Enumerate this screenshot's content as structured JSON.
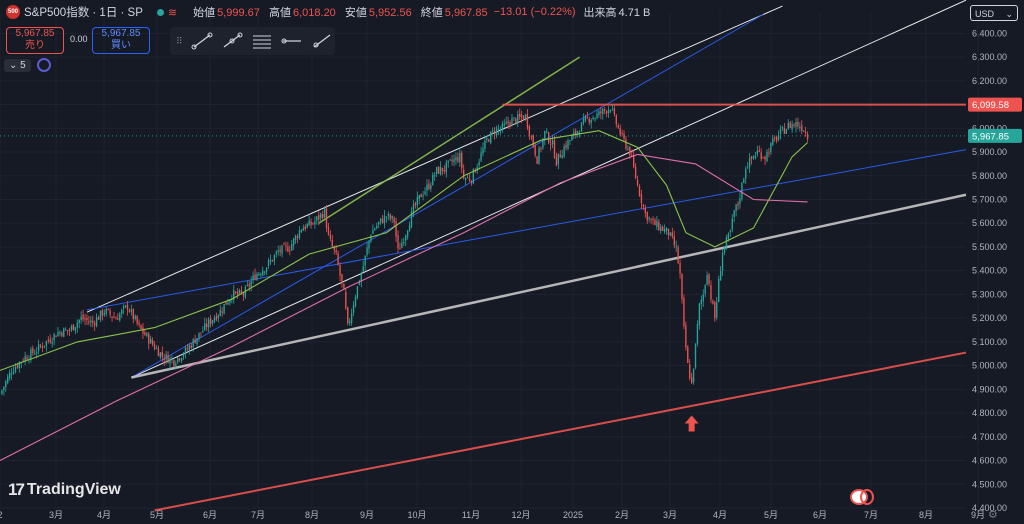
{
  "header": {
    "symbol_logo": "500",
    "title": "S&P500指数 · 1日 · SP",
    "open_label": "始値",
    "open": "5,999.67",
    "high_label": "高値",
    "high": "6,018.20",
    "low_label": "安値",
    "low": "5,952.56",
    "close_label": "終値",
    "close": "5,967.85",
    "change": "−13.01 (−0.22%)",
    "volume_label": "出来高",
    "volume": "4.71 B"
  },
  "trade": {
    "sell_price": "5,967.85",
    "sell_label": "売り",
    "buy_price": "5,967.85",
    "buy_label": "買い",
    "spread": "0.00"
  },
  "indicator_count": "5",
  "currency": "USD",
  "brand": "TradingView",
  "colors": {
    "background": "#161a25",
    "up": "#26a69a",
    "down": "#ef5350",
    "resistance": "#ef5350",
    "last": "#26a69a"
  },
  "chart_data": {
    "type": "candlestick",
    "x_ticks": [
      "2",
      "3月",
      "4月",
      "5月",
      "6月",
      "7月",
      "8月",
      "9月",
      "10月",
      "11月",
      "12月",
      "2025",
      "2月",
      "3月",
      "4月",
      "5月",
      "6月",
      "7月",
      "8月",
      "9月"
    ],
    "y_ticks": [
      "6,400.00",
      "6,300.00",
      "6,200.00",
      "6,100.00",
      "6,000.00",
      "5,900.00",
      "5,800.00",
      "5,700.00",
      "5,600.00",
      "5,500.00",
      "5,400.00",
      "5,300.00",
      "5,200.00",
      "5,100.00",
      "5,000.00",
      "4,900.00",
      "4,800.00",
      "4,700.00",
      "4,600.00",
      "4,500.00",
      "4,400.00"
    ],
    "ylim": [
      4400,
      6490
    ],
    "price_labels": {
      "resistance": "6,099.58",
      "last": "5,967.85"
    },
    "close_series": [
      [
        0,
        4880
      ],
      [
        6,
        4980
      ],
      [
        12,
        5030
      ],
      [
        18,
        5060
      ],
      [
        24,
        5100
      ],
      [
        30,
        5140
      ],
      [
        36,
        5150
      ],
      [
        42,
        5200
      ],
      [
        48,
        5180
      ],
      [
        54,
        5230
      ],
      [
        60,
        5200
      ],
      [
        66,
        5250
      ],
      [
        72,
        5160
      ],
      [
        78,
        5100
      ],
      [
        84,
        5040
      ],
      [
        90,
        5020
      ],
      [
        96,
        5060
      ],
      [
        102,
        5120
      ],
      [
        108,
        5180
      ],
      [
        114,
        5230
      ],
      [
        120,
        5300
      ],
      [
        126,
        5300
      ],
      [
        132,
        5380
      ],
      [
        138,
        5420
      ],
      [
        144,
        5480
      ],
      [
        150,
        5500
      ],
      [
        156,
        5580
      ],
      [
        162,
        5600
      ],
      [
        168,
        5650
      ],
      [
        170,
        5540
      ],
      [
        174,
        5460
      ],
      [
        178,
        5300
      ],
      [
        180,
        5160
      ],
      [
        184,
        5300
      ],
      [
        188,
        5420
      ],
      [
        192,
        5560
      ],
      [
        196,
        5600
      ],
      [
        200,
        5630
      ],
      [
        204,
        5610
      ],
      [
        206,
        5480
      ],
      [
        210,
        5560
      ],
      [
        214,
        5660
      ],
      [
        218,
        5720
      ],
      [
        222,
        5760
      ],
      [
        226,
        5820
      ],
      [
        230,
        5830
      ],
      [
        234,
        5860
      ],
      [
        238,
        5880
      ],
      [
        240,
        5790
      ],
      [
        244,
        5790
      ],
      [
        248,
        5870
      ],
      [
        252,
        5950
      ],
      [
        256,
        5990
      ],
      [
        260,
        6000
      ],
      [
        264,
        6030
      ],
      [
        268,
        6040
      ],
      [
        272,
        6050
      ],
      [
        276,
        5930
      ],
      [
        278,
        5870
      ],
      [
        282,
        5980
      ],
      [
        286,
        5930
      ],
      [
        288,
        5860
      ],
      [
        292,
        5920
      ],
      [
        296,
        5960
      ],
      [
        300,
        6000
      ],
      [
        304,
        6040
      ],
      [
        308,
        6050
      ],
      [
        312,
        6070
      ],
      [
        316,
        6090
      ],
      [
        318,
        6040
      ],
      [
        322,
        5960
      ],
      [
        326,
        5900
      ],
      [
        330,
        5760
      ],
      [
        334,
        5640
      ],
      [
        338,
        5600
      ],
      [
        342,
        5580
      ],
      [
        346,
        5560
      ],
      [
        350,
        5490
      ],
      [
        352,
        5380
      ],
      [
        354,
        5150
      ],
      [
        356,
        5000
      ],
      [
        358,
        4920
      ],
      [
        360,
        5080
      ],
      [
        362,
        5250
      ],
      [
        364,
        5300
      ],
      [
        366,
        5400
      ],
      [
        368,
        5290
      ],
      [
        370,
        5200
      ],
      [
        372,
        5350
      ],
      [
        374,
        5480
      ],
      [
        376,
        5520
      ],
      [
        378,
        5560
      ],
      [
        380,
        5650
      ],
      [
        382,
        5680
      ],
      [
        386,
        5840
      ],
      [
        388,
        5860
      ],
      [
        392,
        5900
      ],
      [
        396,
        5880
      ],
      [
        400,
        5940
      ],
      [
        404,
        5980
      ],
      [
        408,
        6010
      ],
      [
        412,
        6020
      ],
      [
        416,
        6000
      ],
      [
        418,
        5968
      ]
    ],
    "moving_averages": [
      {
        "color": "#8bc34a",
        "points": [
          [
            0,
            4980
          ],
          [
            40,
            5100
          ],
          [
            80,
            5160
          ],
          [
            120,
            5280
          ],
          [
            160,
            5470
          ],
          [
            200,
            5560
          ],
          [
            240,
            5800
          ],
          [
            280,
            5950
          ],
          [
            310,
            5990
          ],
          [
            330,
            5920
          ],
          [
            345,
            5760
          ],
          [
            355,
            5560
          ],
          [
            370,
            5500
          ],
          [
            390,
            5580
          ],
          [
            410,
            5880
          ],
          [
            418,
            5940
          ]
        ]
      },
      {
        "color": "#e06eaa",
        "points": [
          [
            0,
            4600
          ],
          [
            60,
            4850
          ],
          [
            120,
            5080
          ],
          [
            180,
            5330
          ],
          [
            240,
            5560
          ],
          [
            290,
            5770
          ],
          [
            330,
            5890
          ],
          [
            360,
            5850
          ],
          [
            390,
            5700
          ],
          [
            418,
            5690
          ]
        ]
      }
    ],
    "trendlines": [
      {
        "color": "#ffffff",
        "width": 1,
        "from": [
          45,
          5225
        ],
        "to": [
          405,
          6515
        ]
      },
      {
        "color": "#ffffff",
        "width": 1,
        "from": [
          68,
          4950
        ],
        "to": [
          500,
          6540
        ]
      },
      {
        "color": "#2962ff",
        "width": 1,
        "from": [
          68,
          4950
        ],
        "to": [
          395,
          6480
        ]
      },
      {
        "color": "#2962ff",
        "width": 1,
        "from": [
          45,
          5235
        ],
        "to": [
          500,
          5910
        ]
      },
      {
        "color": "#8bc34a",
        "width": 1.5,
        "from": [
          165,
          5600
        ],
        "to": [
          300,
          6300
        ]
      },
      {
        "color": "#c8c8c8",
        "width": 2.5,
        "from": [
          68,
          4950
        ],
        "to": [
          500,
          5720
        ]
      },
      {
        "color": "#ef5350",
        "width": 2,
        "from": [
          80,
          4390
        ],
        "to": [
          500,
          5055
        ]
      },
      {
        "color": "#ef5350",
        "width": 2,
        "from": [
          260,
          6099.58
        ],
        "to": [
          500,
          6099.58
        ]
      }
    ],
    "annotation": {
      "type": "up-arrow",
      "x": 358,
      "price": 4790,
      "color": "#ef5350"
    }
  }
}
